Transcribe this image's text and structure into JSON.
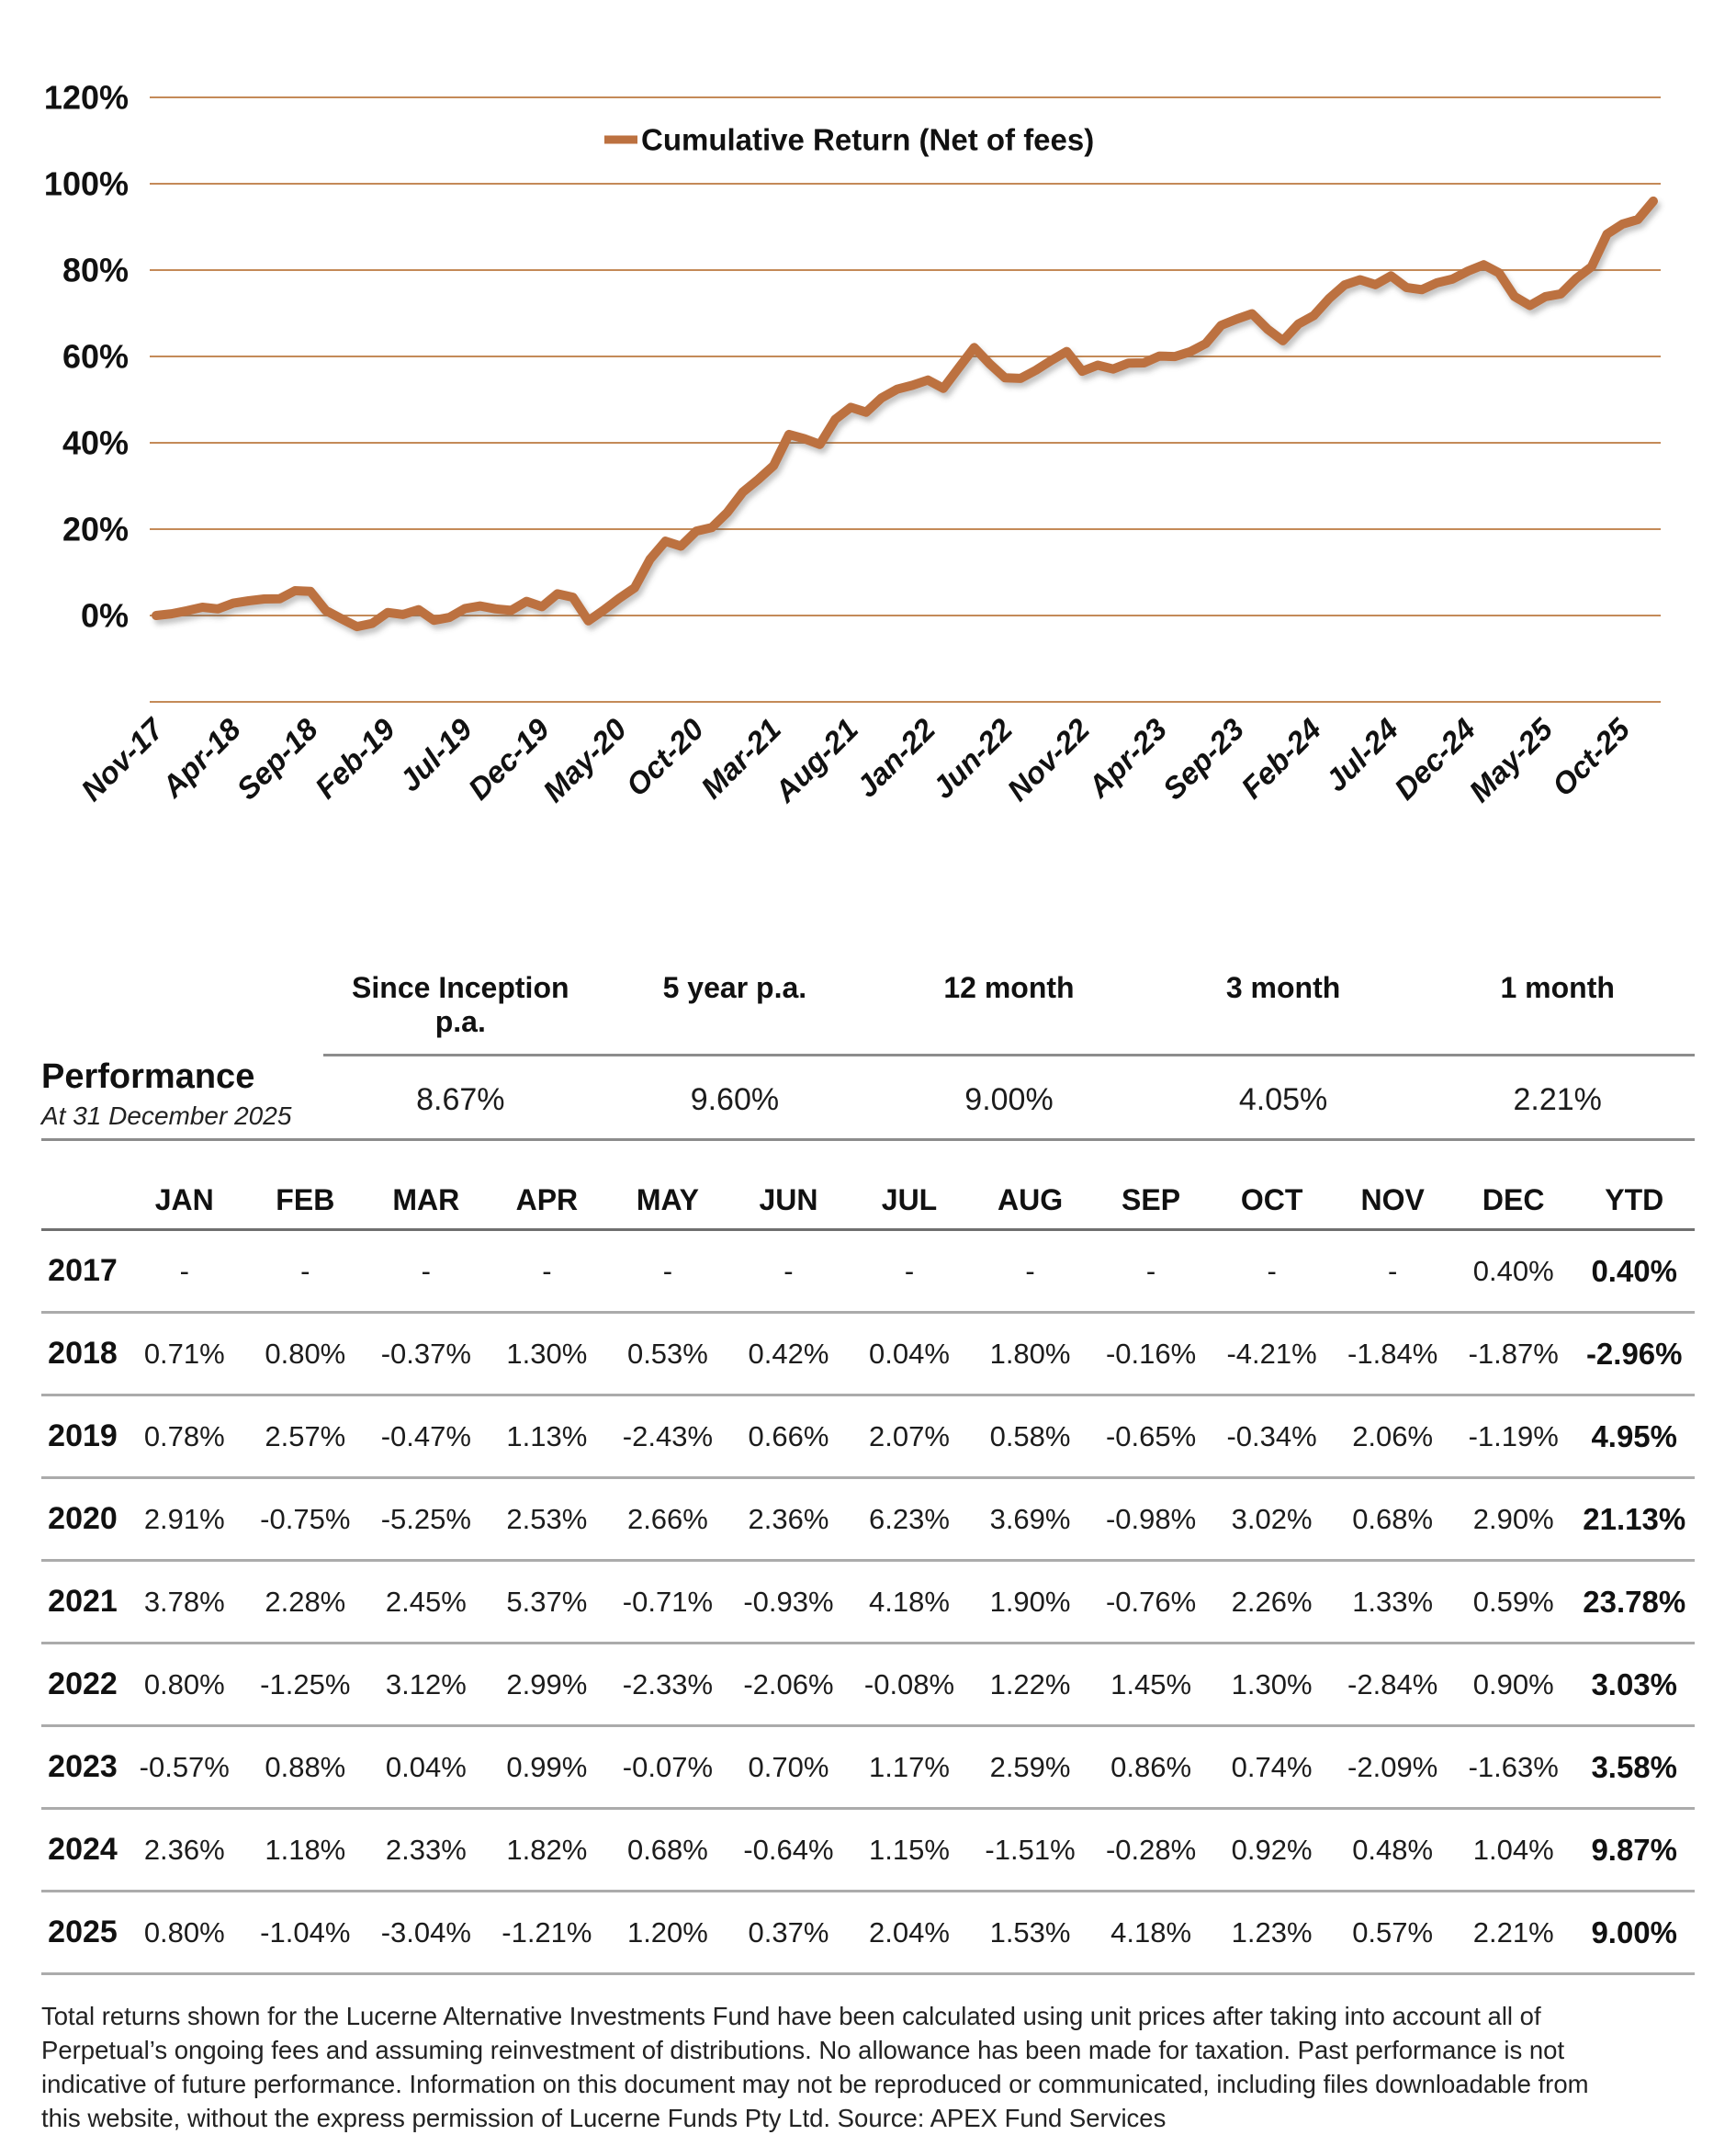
{
  "chart": {
    "line_color": "#bc7140",
    "grid_color": "#c48a58",
    "legend_label": "Cumulative Return (Net of fees)"
  },
  "chart_data": {
    "type": "line",
    "title": "",
    "xlabel": "",
    "ylabel": "",
    "ylim": [
      -20,
      120
    ],
    "y_tick_step": 20,
    "y_tick_labels": [
      "120%",
      "100%",
      "80%",
      "60%",
      "40%",
      "20%",
      "0%"
    ],
    "grid": true,
    "legend_position": "top-center",
    "x_tick_every": 5,
    "x_tick_labels": [
      "Nov-17",
      "Apr-18",
      "Sep-18",
      "Feb-19",
      "Jul-19",
      "Dec-19",
      "May-20",
      "Oct-20",
      "Mar-21",
      "Aug-21",
      "Jan-22",
      "Jun-22",
      "Nov-22",
      "Apr-23",
      "Sep-23",
      "Feb-24",
      "Jul-24",
      "Dec-24",
      "May-25",
      "Oct-25"
    ],
    "series": [
      {
        "name": "Cumulative Return (Net of fees)",
        "x_start": "Nov-17",
        "x_end": "Dec-25",
        "values": [
          0.0,
          0.4,
          1.11,
          1.92,
          1.54,
          2.86,
          3.41,
          3.84,
          3.88,
          5.75,
          5.59,
          1.14,
          -0.72,
          -2.58,
          -1.82,
          0.71,
          0.23,
          1.37,
          -1.1,
          -0.45,
          1.62,
          2.21,
          1.54,
          1.2,
          3.28,
          2.05,
          5.02,
          4.23,
          -1.24,
          1.26,
          3.95,
          6.41,
          13.03,
          17.21,
          16.06,
          19.56,
          20.37,
          23.87,
          28.55,
          31.48,
          34.7,
          41.93,
          40.93,
          39.61,
          45.45,
          48.21,
          47.09,
          50.41,
          52.41,
          53.31,
          54.54,
          52.61,
          57.37,
          62.07,
          58.3,
          55.04,
          54.91,
          56.8,
          59.08,
          61.14,
          56.57,
          57.98,
          57.08,
          58.46,
          58.52,
          60.09,
          59.98,
          61.1,
          62.98,
          67.21,
          68.64,
          69.89,
          66.34,
          63.63,
          67.49,
          69.47,
          73.42,
          76.57,
          77.77,
          76.63,
          78.67,
          75.97,
          75.47,
          77.09,
          77.94,
          79.79,
          81.23,
          79.34,
          73.89,
          71.79,
          73.85,
          74.49,
          78.05,
          80.78,
          88.33,
          90.65,
          91.73,
          95.97
        ]
      }
    ]
  },
  "performance": {
    "row_label": "Performance",
    "as_at": "At  31 December 2025",
    "columns": [
      {
        "label": "Since Inception p.a.",
        "value": "8.67%"
      },
      {
        "label": "5 year p.a.",
        "value": "9.60%"
      },
      {
        "label": "12 month",
        "value": "9.00%"
      },
      {
        "label": "3 month",
        "value": "4.05%"
      },
      {
        "label": "1 month",
        "value": "2.21%"
      }
    ]
  },
  "table": {
    "corner_label": "",
    "columns": [
      "JAN",
      "FEB",
      "MAR",
      "APR",
      "MAY",
      "JUN",
      "JUL",
      "AUG",
      "SEP",
      "OCT",
      "NOV",
      "DEC",
      "YTD"
    ],
    "rows": [
      {
        "year": "2017",
        "values": [
          "-",
          "-",
          "-",
          "-",
          "-",
          "-",
          "-",
          "-",
          "-",
          "-",
          "-",
          "0.40%"
        ],
        "ytd": "0.40%"
      },
      {
        "year": "2018",
        "values": [
          "0.71%",
          "0.80%",
          "-0.37%",
          "1.30%",
          "0.53%",
          "0.42%",
          "0.04%",
          "1.80%",
          "-0.16%",
          "-4.21%",
          "-1.84%",
          "-1.87%"
        ],
        "ytd": "-2.96%"
      },
      {
        "year": "2019",
        "values": [
          "0.78%",
          "2.57%",
          "-0.47%",
          "1.13%",
          "-2.43%",
          "0.66%",
          "2.07%",
          "0.58%",
          "-0.65%",
          "-0.34%",
          "2.06%",
          "-1.19%"
        ],
        "ytd": "4.95%"
      },
      {
        "year": "2020",
        "values": [
          "2.91%",
          "-0.75%",
          "-5.25%",
          "2.53%",
          "2.66%",
          "2.36%",
          "6.23%",
          "3.69%",
          "-0.98%",
          "3.02%",
          "0.68%",
          "2.90%"
        ],
        "ytd": "21.13%"
      },
      {
        "year": "2021",
        "values": [
          "3.78%",
          "2.28%",
          "2.45%",
          "5.37%",
          "-0.71%",
          "-0.93%",
          "4.18%",
          "1.90%",
          "-0.76%",
          "2.26%",
          "1.33%",
          "0.59%"
        ],
        "ytd": "23.78%"
      },
      {
        "year": "2022",
        "values": [
          "0.80%",
          "-1.25%",
          "3.12%",
          "2.99%",
          "-2.33%",
          "-2.06%",
          "-0.08%",
          "1.22%",
          "1.45%",
          "1.30%",
          "-2.84%",
          "0.90%"
        ],
        "ytd": "3.03%"
      },
      {
        "year": "2023",
        "values": [
          "-0.57%",
          "0.88%",
          "0.04%",
          "0.99%",
          "-0.07%",
          "0.70%",
          "1.17%",
          "2.59%",
          "0.86%",
          "0.74%",
          "-2.09%",
          "-1.63%"
        ],
        "ytd": "3.58%"
      },
      {
        "year": "2024",
        "values": [
          "2.36%",
          "1.18%",
          "2.33%",
          "1.82%",
          "0.68%",
          "-0.64%",
          "1.15%",
          "-1.51%",
          "-0.28%",
          "0.92%",
          "0.48%",
          "1.04%"
        ],
        "ytd": "9.87%"
      },
      {
        "year": "2025",
        "values": [
          "0.80%",
          "-1.04%",
          "-3.04%",
          "-1.21%",
          "1.20%",
          "0.37%",
          "2.04%",
          "1.53%",
          "4.18%",
          "1.23%",
          "0.57%",
          "2.21%"
        ],
        "ytd": "9.00%"
      }
    ]
  },
  "footer": {
    "text": "Total returns shown for the Lucerne Alternative Investments Fund have been calculated using unit prices after taking into account all of Perpetual’s ongoing fees and assuming reinvestment of distributions. No allowance has been made for taxation. Past performance is not indicative of future performance. Information on this document may not be reproduced or communicated, including files downloadable from this website, without the express permission of Lucerne Funds Pty Ltd. Source: APEX Fund Services"
  }
}
